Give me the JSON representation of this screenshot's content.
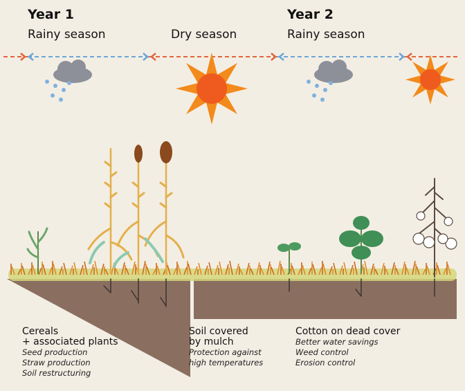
{
  "header": {
    "year1": "Year 1",
    "season1": "Rainy season",
    "season2": "Dry season",
    "year2": "Year 2",
    "season3": "Rainy season"
  },
  "panels": [
    {
      "lines": [
        "Cereals",
        "+ associated plants"
      ],
      "notes": [
        "Seed production",
        "Straw production",
        "Soil restructuring"
      ]
    },
    {
      "lines": [
        "Soil covered",
        "by mulch"
      ],
      "notes": [
        "Protection against",
        "high temperatures"
      ]
    },
    {
      "lines": [
        "Cotton on dead cover"
      ],
      "notes": [
        "Better water savings",
        "Weed control",
        "Erosion control"
      ]
    }
  ]
}
